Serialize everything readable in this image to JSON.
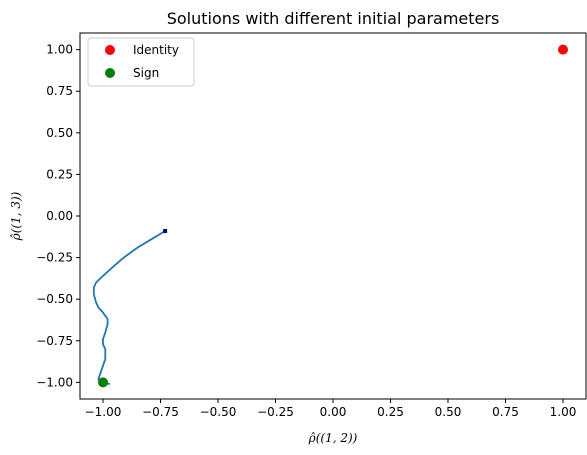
{
  "chart_data": {
    "type": "line",
    "title": "Solutions with different initial parameters",
    "xlabel": "ρ̂((1, 2))",
    "ylabel": "ρ̂((1, 3))",
    "xlim": [
      -1.1,
      1.1
    ],
    "ylim": [
      -1.1,
      1.1
    ],
    "xticks": [
      -1.0,
      -0.75,
      -0.5,
      -0.25,
      0.0,
      0.25,
      0.5,
      0.75,
      1.0
    ],
    "xtick_labels": [
      "−1.00",
      "−0.75",
      "−0.50",
      "−0.25",
      "0.00",
      "0.25",
      "0.50",
      "0.75",
      "1.00"
    ],
    "yticks": [
      -1.0,
      -0.75,
      -0.5,
      -0.25,
      0.0,
      0.25,
      0.5,
      0.75,
      1.0
    ],
    "ytick_labels": [
      "−1.00",
      "−0.75",
      "−0.50",
      "−0.25",
      "0.00",
      "0.25",
      "0.50",
      "0.75",
      "1.00"
    ],
    "grid": false,
    "legend_position": "top-left",
    "series": [
      {
        "color": "#1f77b4",
        "x": [
          -0.73,
          -0.79,
          -0.85,
          -0.91,
          -0.96,
          -1.0,
          -1.03,
          -1.04,
          -1.04,
          -1.03,
          -1.02,
          -1.0,
          -0.99,
          -0.98,
          -0.98,
          -0.99,
          -1.0,
          -1.0,
          -0.99,
          -0.99,
          -0.99,
          -1.0,
          -1.01,
          -1.02,
          -1.01,
          -0.97
        ],
        "y": [
          -0.09,
          -0.14,
          -0.19,
          -0.25,
          -0.31,
          -0.36,
          -0.4,
          -0.43,
          -0.47,
          -0.52,
          -0.55,
          -0.58,
          -0.6,
          -0.62,
          -0.65,
          -0.7,
          -0.74,
          -0.77,
          -0.8,
          -0.83,
          -0.86,
          -0.9,
          -0.94,
          -0.98,
          -1.0,
          -1.01
        ]
      },
      {
        "name": "Identity",
        "color": "#ff0000",
        "marker": "circle",
        "x": [
          1.0
        ],
        "y": [
          1.0
        ]
      },
      {
        "name": "Sign",
        "color": "#008000",
        "marker": "circle",
        "x": [
          -1.0
        ],
        "y": [
          -1.0
        ]
      }
    ],
    "start_marker": {
      "color": "#000080",
      "x": -0.73,
      "y": -0.09
    }
  }
}
